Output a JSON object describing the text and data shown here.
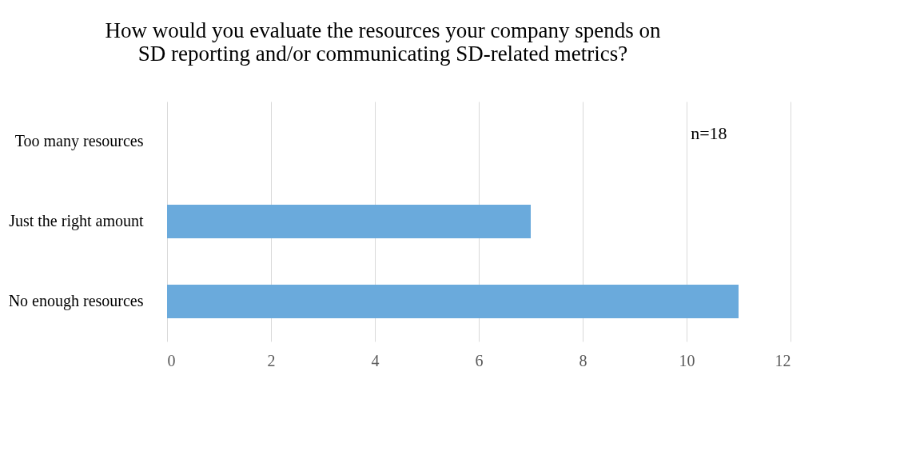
{
  "chart_data": {
    "type": "bar",
    "orientation": "horizontal",
    "title": "How would you evaluate the resources your company spends on\nSD reporting and/or communicating SD-related metrics?",
    "categories": [
      "Too many resources",
      "Just the right amount",
      "No enough resources"
    ],
    "values": [
      0,
      7,
      11
    ],
    "color": "#6aaadc",
    "xlim": [
      0,
      12
    ],
    "xticks": [
      0,
      2,
      4,
      6,
      8,
      10,
      12
    ],
    "grid": "x",
    "annotations": [
      "n=18"
    ]
  }
}
